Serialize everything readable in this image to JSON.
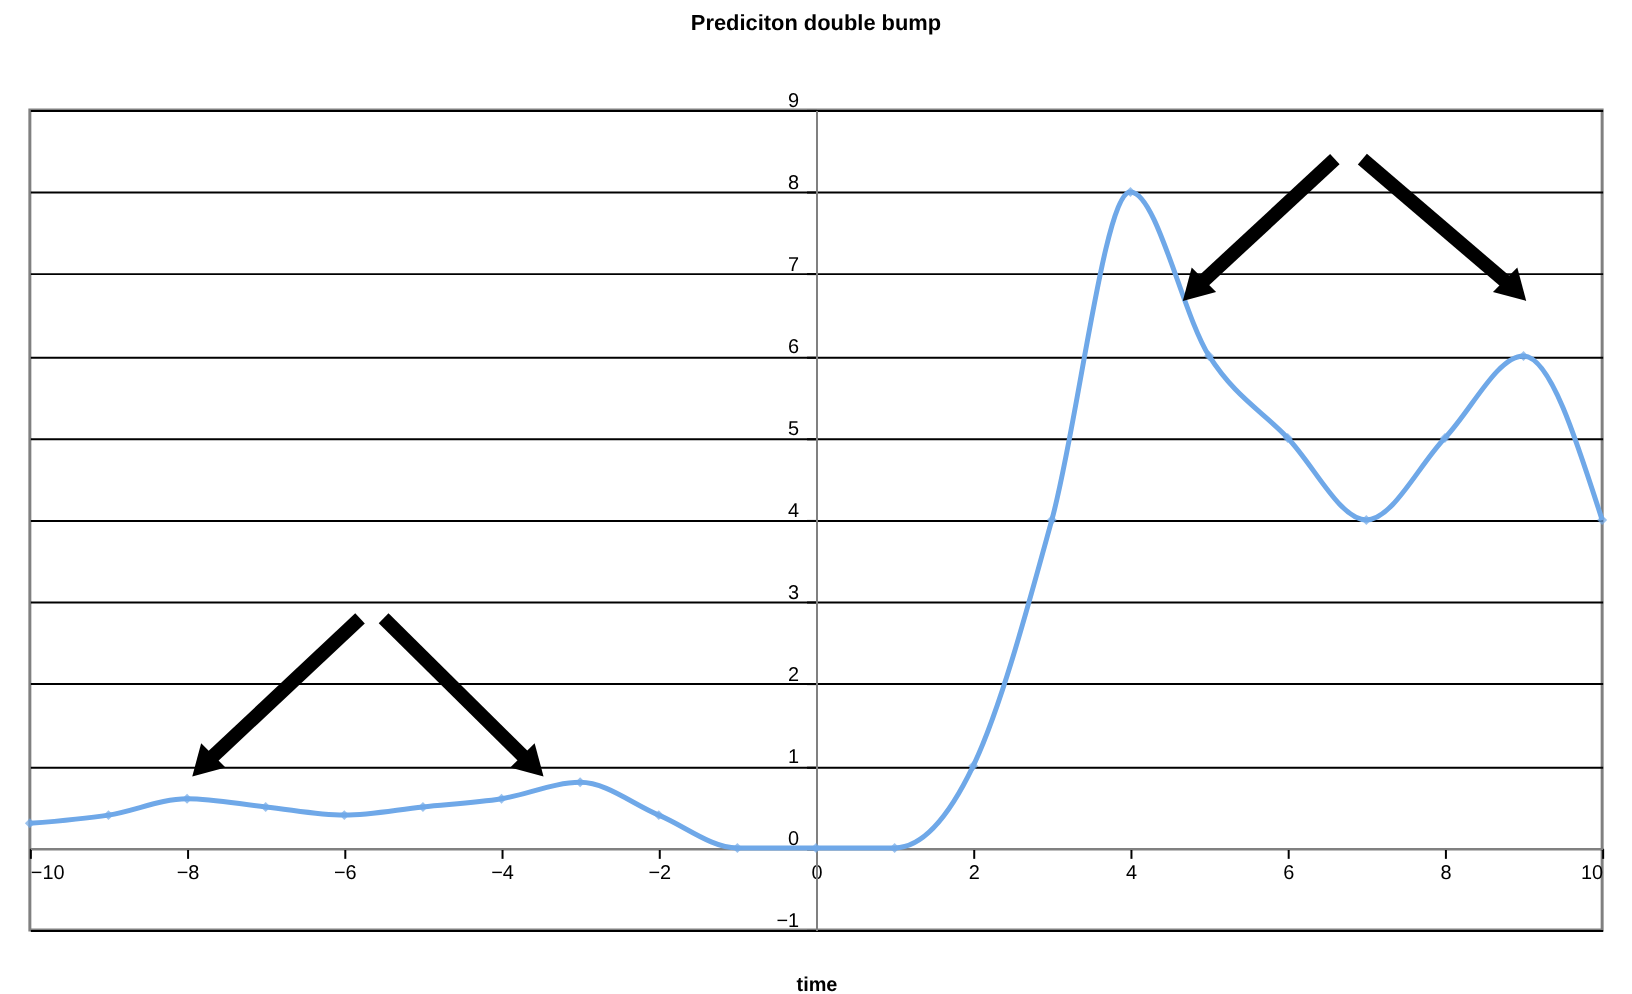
{
  "chart_data": {
    "type": "line",
    "title": "Prediciton double bump",
    "xlabel": "time",
    "x": [
      -10,
      -9,
      -8,
      -7,
      -6,
      -5,
      -4,
      -3,
      -2,
      -1,
      0,
      1,
      2,
      3,
      4,
      5,
      6,
      7,
      8,
      9,
      10
    ],
    "series": [
      {
        "color": "#6fa8e8",
        "values": [
          0.3,
          0.4,
          0.6,
          0.5,
          0.4,
          0.5,
          0.6,
          0.8,
          0.4,
          0,
          0,
          0,
          1,
          4,
          8,
          6,
          5,
          4,
          5,
          6,
          4
        ]
      }
    ],
    "xlim": [
      -10,
      10
    ],
    "xticks": [
      -10,
      -8,
      -6,
      -4,
      -2,
      0,
      2,
      4,
      6,
      8,
      10
    ],
    "ylim": [
      -1,
      9
    ],
    "yticks": [
      -1,
      0,
      1,
      2,
      3,
      4,
      5,
      6,
      7,
      8,
      9
    ],
    "grid": "y",
    "marker": "diamond",
    "line_style": "solid",
    "legend": false
  }
}
